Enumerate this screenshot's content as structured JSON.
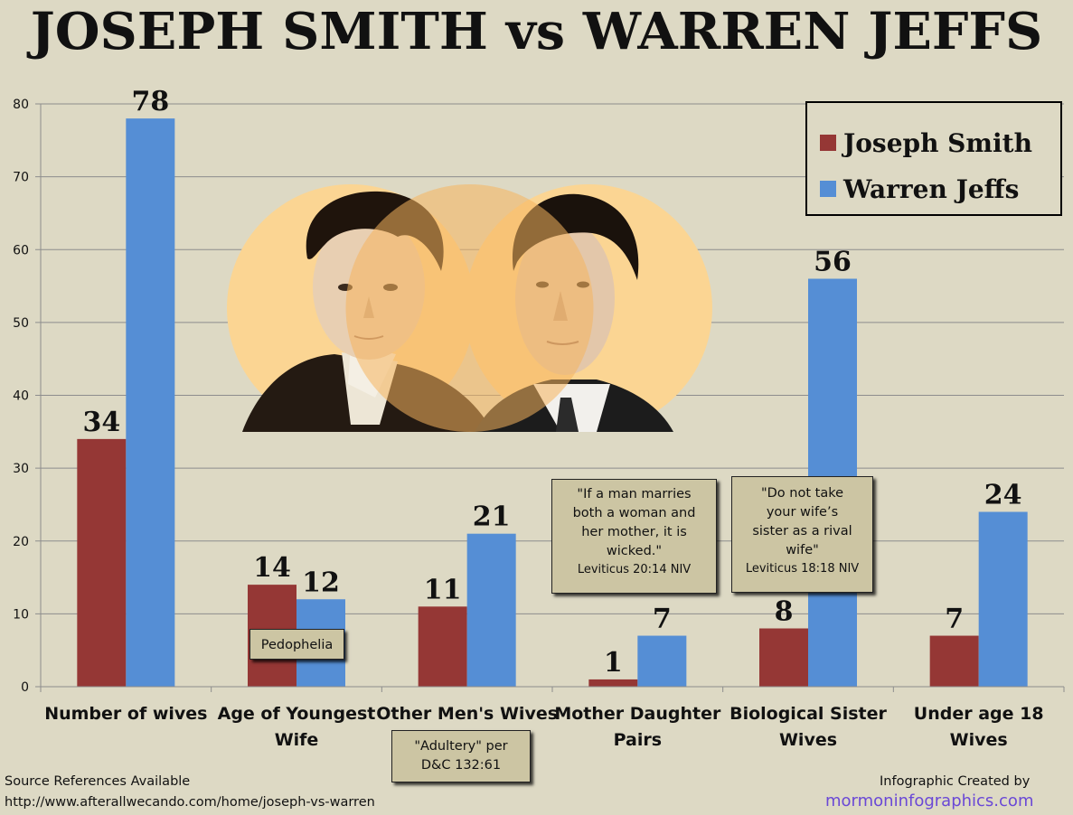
{
  "title": "JOSEPH SMITH vs WARREN JEFFS",
  "chart_data": {
    "type": "bar",
    "categories": [
      "Number of wives",
      "Age of Youngest Wife",
      "Other Men's Wives",
      "Mother Daughter Pairs",
      "Biological Sister Wives",
      "Under age 18 Wives"
    ],
    "series": [
      {
        "name": "Joseph Smith",
        "values": [
          34,
          14,
          11,
          1,
          8,
          7
        ],
        "color": "#953735"
      },
      {
        "name": "Warren Jeffs",
        "values": [
          78,
          12,
          21,
          7,
          56,
          24
        ],
        "color": "#558ed5"
      }
    ],
    "yticks": [
      "0",
      "10",
      "20",
      "30",
      "40",
      "50",
      "60",
      "70",
      "80"
    ],
    "ylim": [
      0,
      80
    ],
    "grid": true,
    "legend": "top-right"
  },
  "callouts": {
    "pedophelia": "Pedophelia",
    "adultery_line1": "\"Adultery\" per",
    "adultery_line2": "D&C 132:61",
    "mother_quote_line1": "\"If a man marries",
    "mother_quote_line2": "both a woman and",
    "mother_quote_line3": "her mother, it is",
    "mother_quote_line4": "wicked.\"",
    "mother_cite": "Leviticus 20:14 NIV",
    "sister_quote_line1": "\"Do not take",
    "sister_quote_line2": "your wife’s",
    "sister_quote_line3": "sister as a rival",
    "sister_quote_line4": "wife\"",
    "sister_cite": "Leviticus 18:18 NIV"
  },
  "footer": {
    "source_label": "Source References Available",
    "source_url": "http://www.afterallwecando.com/home/joseph-vs-warren",
    "credit_label": "Infographic Created by",
    "credit_site": "mormoninfographics.com"
  },
  "colors": {
    "background": "#ddd9c4",
    "portrait_circle": "#fbd593",
    "circle_overlap": "#f6b55e"
  }
}
